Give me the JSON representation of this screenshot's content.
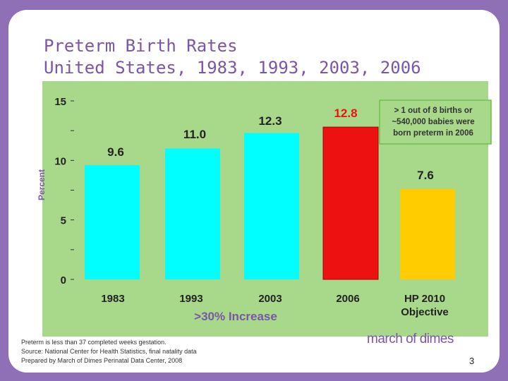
{
  "slide": {
    "title_line1": "Preterm Birth Rates",
    "title_line2": "United States, 1983, 1993, 2003, 2006",
    "footnote_line1": "Preterm is less than 37 completed weeks gestation.",
    "footnote_line2": "Source: National Center for Health Statistics, final natality data",
    "footnote_line3": "Prepared by March of Dimes Perinatal Data Center, 2008",
    "logo_text": "march of dimes",
    "page_number": "3"
  },
  "chart_data": {
    "type": "bar",
    "title": "Preterm Birth Rates United States, 1983, 1993, 2003, 2006",
    "ylabel": "Percent",
    "xlabel": "",
    "ylim": [
      0,
      15
    ],
    "yticks": [
      0,
      5,
      10,
      15
    ],
    "ytick_labels": [
      "0",
      "5",
      "10",
      "15"
    ],
    "categories": [
      "1983",
      "1993",
      "2003",
      "2006",
      "HP 2010 Objective"
    ],
    "values": [
      9.6,
      11.0,
      12.3,
      12.8,
      7.6
    ],
    "value_labels": [
      "9.6",
      "11.0",
      "12.3",
      "12.8",
      "7.6"
    ],
    "category_line1": [
      "1983",
      "1993",
      "2003",
      "2006",
      "HP 2010"
    ],
    "category_line2": [
      "",
      "",
      "",
      "",
      "Objective"
    ],
    "colors": [
      "#00ffff",
      "#00ffff",
      "#00ffff",
      "#ee1111",
      "#ffcc00"
    ],
    "plot_bg": "#a8d88a",
    "highlight_color": "#ee1111",
    "callout": {
      "line1": "> 1 out of 8 births or",
      "line2": "~540,000 babies were",
      "line3": "born preterm in 2006"
    },
    "increase_label": ">30% Increase",
    "increase_color": "#7a55a8"
  }
}
